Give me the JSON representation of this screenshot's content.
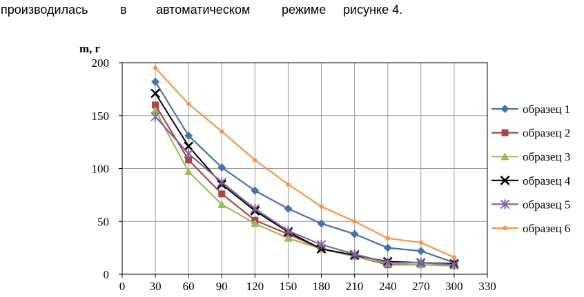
{
  "document": {
    "text_words": [
      "производилась",
      "в",
      "автоматическом",
      "режиме",
      "рисунке 4."
    ]
  },
  "chart_data": {
    "type": "line",
    "title": "",
    "xlabel": "",
    "ylabel": "m, г",
    "xlim": [
      0,
      330
    ],
    "ylim": [
      0,
      200
    ],
    "x_ticks": [
      0,
      30,
      60,
      90,
      120,
      150,
      180,
      210,
      240,
      270,
      300,
      330
    ],
    "y_ticks": [
      0,
      50,
      100,
      150,
      200
    ],
    "grid": true,
    "legend_position": "right",
    "x": [
      30,
      60,
      90,
      120,
      150,
      180,
      210,
      240,
      270,
      300
    ],
    "series": [
      {
        "name": "образец 1",
        "color": "#4572a7",
        "marker": "diamond",
        "values": [
          182,
          131,
          101,
          79,
          62,
          48,
          38,
          25,
          22,
          11
        ]
      },
      {
        "name": "образец 2",
        "color": "#aa4643",
        "marker": "square",
        "values": [
          160,
          108,
          76,
          51,
          38,
          24,
          17,
          9,
          9,
          8
        ]
      },
      {
        "name": "образец 3",
        "color": "#9bbb59",
        "marker": "triangle",
        "values": [
          155,
          97,
          66,
          48,
          34,
          24,
          17,
          10,
          9,
          8
        ]
      },
      {
        "name": "образец 4",
        "color": "#000000",
        "marker": "x",
        "values": [
          171,
          121,
          85,
          60,
          40,
          24,
          18,
          12,
          11,
          10
        ]
      },
      {
        "name": "образец 5",
        "color": "#8064a2",
        "marker": "star",
        "values": [
          149,
          114,
          87,
          62,
          41,
          28,
          19,
          11,
          11,
          9
        ]
      },
      {
        "name": "образец 6",
        "color": "#f79646",
        "marker": "circle",
        "values": [
          195,
          161,
          135,
          108,
          85,
          64,
          50,
          34,
          30,
          16
        ]
      }
    ]
  }
}
